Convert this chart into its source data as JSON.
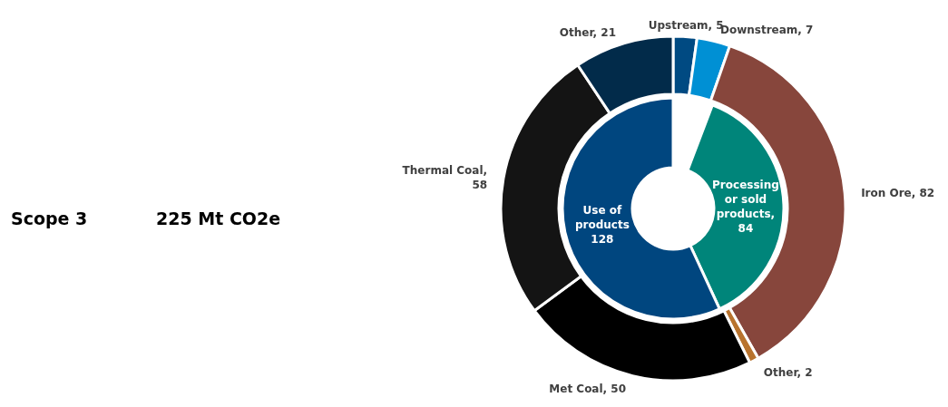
{
  "chart_data": {
    "type": "donut",
    "title": "Scope 3",
    "subtitle": "225 Mt CO2e",
    "data_labels": true,
    "series": [
      {
        "values": [
          5,
          7,
          82,
          2,
          50,
          58,
          21
        ],
        "colors": [
          "#004a82",
          "#0090d4",
          "#87463c",
          "#b8732e",
          "#000000",
          "#141414",
          "#022b4a"
        ],
        "value_labels": [
          "Upstream, 5",
          "Downstream, 7",
          "Iron Ore, 82",
          "Other, 2",
          "Met Coal, 50",
          "Thermal Coal, 58",
          "Other, 21"
        ]
      },
      {
        "values": [
          84,
          128
        ],
        "colors": [
          "#00857a",
          "#00467f"
        ],
        "value_labels": [
          "Processing or sold products, 84",
          "Use of products 128"
        ]
      }
    ]
  }
}
